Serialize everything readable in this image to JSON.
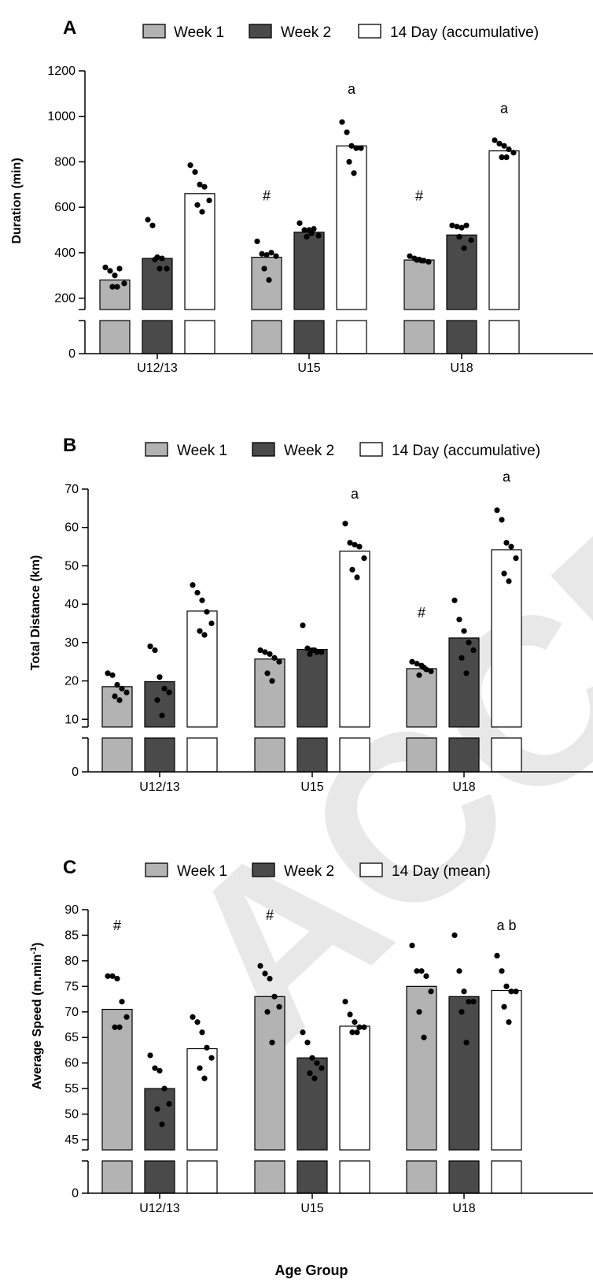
{
  "watermark": "ACCEPTED",
  "colors": {
    "week1": "#b3b3b3",
    "week2": "#4a4a4a",
    "total": "#ffffff",
    "dots": "#000000",
    "axis": "#000000"
  },
  "chart_data": [
    {
      "type": "bar",
      "panel_label": "A",
      "ylabel": "Duration (min)",
      "xlabel": "",
      "categories": [
        "U12/13",
        "U15",
        "U18"
      ],
      "ylim": [
        150,
        1200
      ],
      "break_below": 150,
      "yticks": [
        200,
        400,
        600,
        800,
        1000,
        1200
      ],
      "grid": false,
      "legend": "top",
      "series": [
        {
          "name": "Week 1",
          "color": "#b3b3b3",
          "values": [
            280,
            380,
            368
          ],
          "points": [
            [
              335,
              320,
              300,
              330,
              265,
              250,
              250
            ],
            [
              450,
              395,
              390,
              400,
              385,
              330,
              280
            ],
            [
              385,
              375,
              370,
              365,
              360,
              368,
              365
            ]
          ]
        },
        {
          "name": "Week 2",
          "color": "#4a4a4a",
          "values": [
            375,
            490,
            478
          ],
          "points": [
            [
              545,
              520,
              380,
              375,
              330,
              370,
              330
            ],
            [
              530,
              500,
              500,
              505,
              475,
              470,
              485
            ],
            [
              520,
              515,
              510,
              520,
              455,
              470,
              420
            ]
          ]
        },
        {
          "name": "14 Day (accumulative)",
          "color": "#ffffff",
          "values": [
            660,
            870,
            848
          ],
          "points": [
            [
              785,
              755,
              700,
              690,
              630,
              610,
              580
            ],
            [
              975,
              930,
              870,
              860,
              860,
              800,
              750
            ],
            [
              895,
              880,
              870,
              855,
              840,
              820,
              820
            ]
          ]
        }
      ],
      "annotations": [
        {
          "category": "U15",
          "series": "Week 1",
          "text": "#",
          "y": 630
        },
        {
          "category": "U18",
          "series": "Week 1",
          "text": "#",
          "y": 630
        },
        {
          "category": "U15",
          "series": "14 Day (accumulative)",
          "text": "a",
          "y": 1100
        },
        {
          "category": "U18",
          "series": "14 Day (accumulative)",
          "text": "a",
          "y": 1015
        }
      ]
    },
    {
      "type": "bar",
      "panel_label": "B",
      "ylabel": "Total Distance (km)",
      "xlabel": "",
      "categories": [
        "U12/13",
        "U15",
        "U18"
      ],
      "ylim": [
        8,
        70
      ],
      "break_below": 8,
      "yticks": [
        10,
        20,
        30,
        40,
        50,
        60,
        70
      ],
      "grid": false,
      "legend": "top",
      "series": [
        {
          "name": "Week 1",
          "color": "#b3b3b3",
          "values": [
            18.5,
            25.7,
            23.2
          ],
          "points": [
            [
              22,
              21.5,
              19,
              18,
              17,
              16,
              15
            ],
            [
              28,
              27.5,
              27,
              26,
              25,
              22,
              20
            ],
            [
              25,
              24.5,
              24,
              23,
              22.5,
              21.5,
              23.5
            ]
          ]
        },
        {
          "name": "Week 2",
          "color": "#4a4a4a",
          "values": [
            19.8,
            28.2,
            31.2
          ],
          "points": [
            [
              29,
              28,
              21,
              18,
              17,
              15,
              11
            ],
            [
              34.5,
              28.5,
              28,
              27.5,
              27.5,
              27,
              28
            ],
            [
              41,
              36,
              33,
              30,
              28,
              26,
              22
            ]
          ]
        },
        {
          "name": "14 Day (accumulative)",
          "color": "#ffffff",
          "values": [
            38.2,
            53.8,
            54.2
          ],
          "points": [
            [
              45,
              43,
              41,
              38,
              35,
              33,
              32
            ],
            [
              61,
              56,
              55.5,
              55,
              52,
              49,
              47
            ],
            [
              64.5,
              62,
              56,
              55,
              52,
              48,
              46
            ]
          ]
        }
      ],
      "annotations": [
        {
          "category": "U18",
          "series": "Week 1",
          "text": "#",
          "y": 36.5
        },
        {
          "category": "U15",
          "series": "14 Day (accumulative)",
          "text": "a",
          "y": 67.5
        },
        {
          "category": "U18",
          "series": "14 Day (accumulative)",
          "text": "a",
          "y": 72
        }
      ]
    },
    {
      "type": "bar",
      "panel_label": "C",
      "ylabel_main": "Average Speed (m.min",
      "ylabel_sup": "-1",
      "ylabel_close": ")",
      "xlabel": "Age Group",
      "categories": [
        "U12/13",
        "U15",
        "U18"
      ],
      "ylim": [
        43,
        90
      ],
      "break_below": 43,
      "yticks": [
        45,
        50,
        55,
        60,
        65,
        70,
        75,
        80,
        85,
        90
      ],
      "grid": false,
      "legend": "top",
      "series": [
        {
          "name": "Week 1",
          "color": "#b3b3b3",
          "values": [
            70.5,
            73.0,
            75.0
          ],
          "points": [
            [
              77,
              77,
              76.5,
              72,
              69,
              67,
              67
            ],
            [
              79,
              77.5,
              76.5,
              73,
              71,
              70,
              64
            ],
            [
              83,
              78,
              78,
              77,
              74,
              70,
              65
            ]
          ]
        },
        {
          "name": "Week 2",
          "color": "#4a4a4a",
          "values": [
            55.0,
            61.0,
            73.0
          ],
          "points": [
            [
              61.5,
              59,
              58.5,
              55,
              52,
              51,
              48
            ],
            [
              66,
              64,
              61,
              60,
              59,
              58,
              57
            ],
            [
              85,
              78,
              74,
              72,
              72,
              70,
              64
            ]
          ]
        },
        {
          "name": "14 Day (mean)",
          "color": "#ffffff",
          "values": [
            62.8,
            67.2,
            74.2
          ],
          "points": [
            [
              69,
              68,
              66,
              63,
              61,
              59,
              57
            ],
            [
              72,
              69.5,
              68,
              67,
              67,
              66,
              66
            ],
            [
              81,
              78,
              75,
              74,
              74,
              71,
              68
            ]
          ]
        }
      ],
      "annotations": [
        {
          "category": "U12/13",
          "series": "Week 1",
          "text": "#",
          "y": 86
        },
        {
          "category": "U15",
          "series": "Week 1",
          "text": "#",
          "y": 88
        },
        {
          "category": "U18",
          "series": "14 Day (mean)",
          "text": "a b",
          "y": 86
        }
      ]
    }
  ]
}
